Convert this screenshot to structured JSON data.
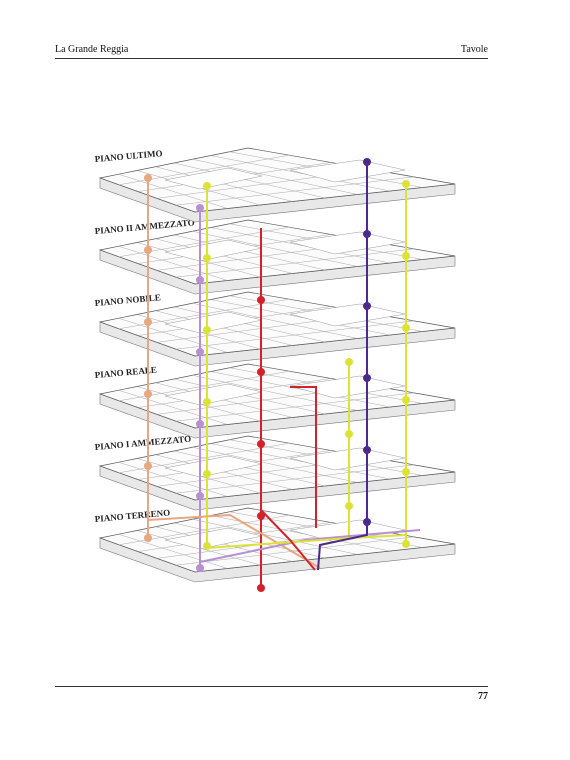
{
  "header": {
    "left": "La Grande Reggia",
    "right": "Tavole"
  },
  "floors": [
    "PIANO ULTIMO",
    "PIANO II AMMEZZATO",
    "PIANO NOBILE",
    "PIANO REALE",
    "PIANO I AMMEZZATO",
    "PIANO TERRENO"
  ],
  "footer": {
    "page_number": "77"
  }
}
